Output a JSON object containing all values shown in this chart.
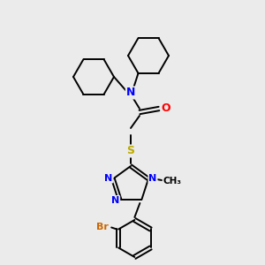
{
  "bg_color": "#ebebeb",
  "bond_color": "#000000",
  "atom_colors": {
    "N": "#0000ff",
    "O": "#ff0000",
    "S": "#bbaa00",
    "Br": "#cc6600",
    "C": "#000000"
  },
  "figsize": [
    3.0,
    3.0
  ],
  "dpi": 100
}
